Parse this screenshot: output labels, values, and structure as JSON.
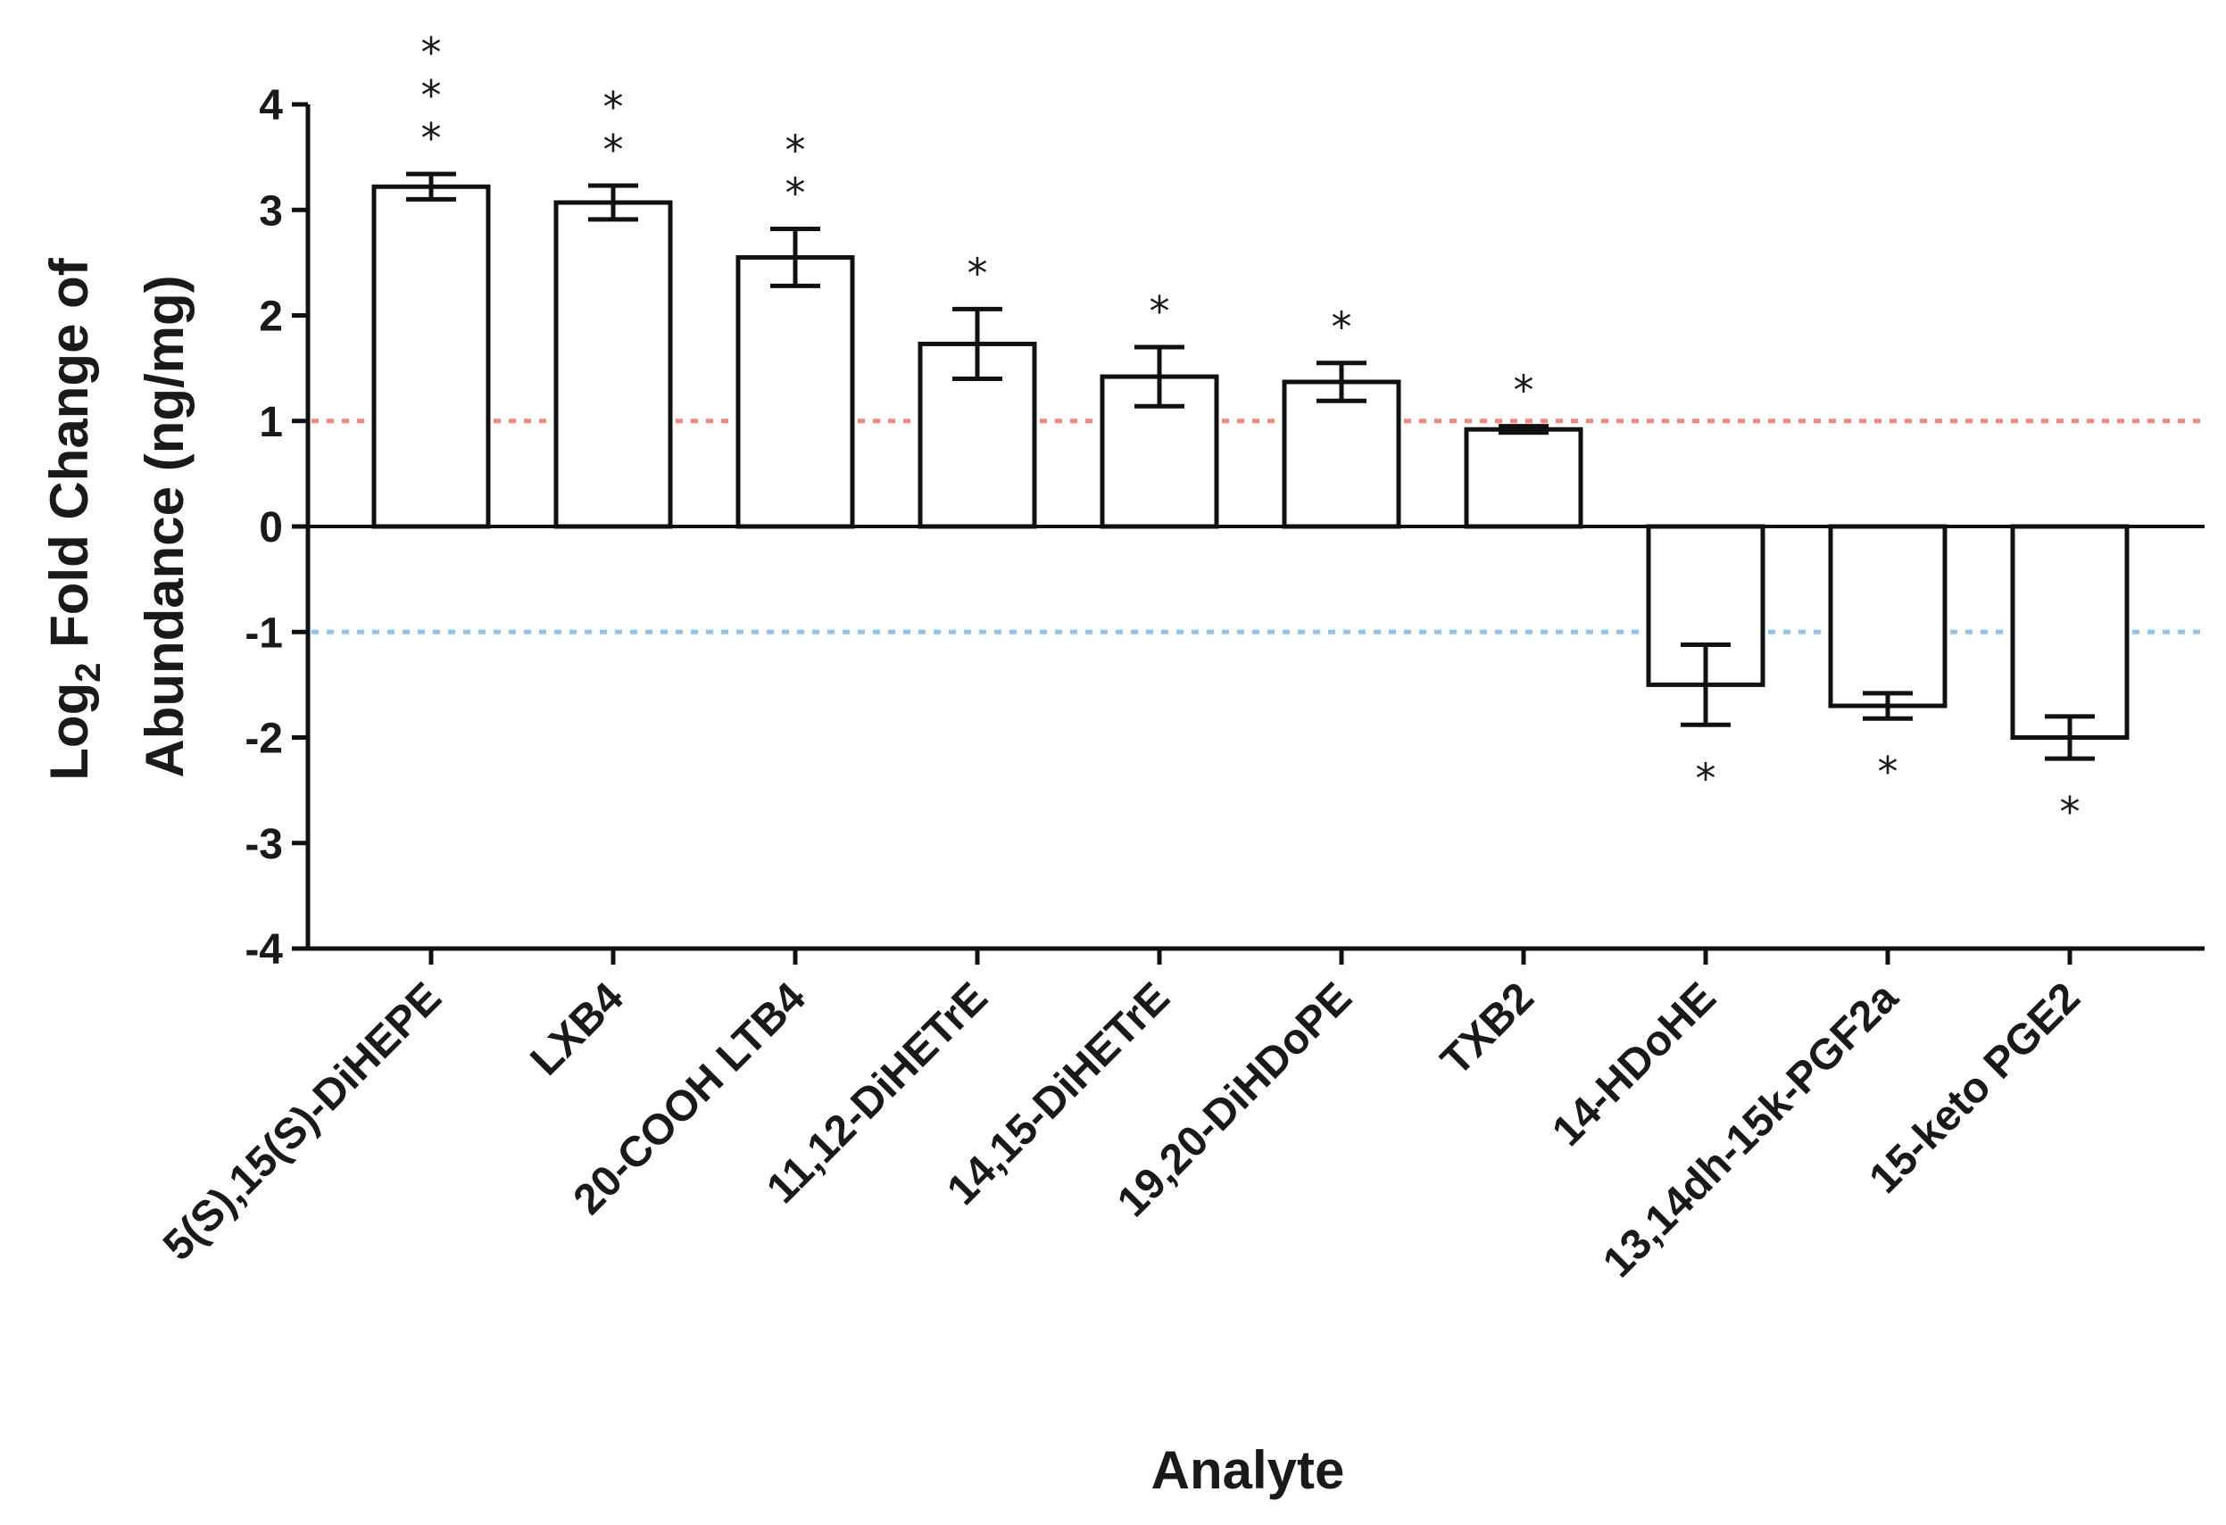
{
  "chart_data": {
    "type": "bar",
    "xlabel": "Analyte",
    "ylabel_line1_prefix": "Log",
    "ylabel_line1_subscript": "2",
    "ylabel_line1_suffix": " Fold Change of",
    "ylabel_line2": "Abundance (ng/mg)",
    "ylim": [
      -4,
      4
    ],
    "yticks": [
      4,
      3,
      2,
      1,
      0,
      -1,
      -2,
      -3,
      -4
    ],
    "reference_lines": [
      {
        "value": 1,
        "color": "#f4877d",
        "style": "dotted"
      },
      {
        "value": -1,
        "color": "#8ec3f4",
        "style": "dotted"
      }
    ],
    "categories": [
      "5(S),15(S)-DiHEPE",
      "LXB4",
      "20-COOH LTB4",
      "11,12-DiHETrE",
      "14,15-DiHETrE",
      "19,20-DiHDoPE",
      "TXB2",
      "14-HDoHE",
      "13,14dh-15k-PGF2a",
      "15-keto PGE2"
    ],
    "values": [
      3.22,
      3.07,
      2.55,
      1.73,
      1.42,
      1.37,
      0.92,
      -1.5,
      -1.7,
      -2.0
    ],
    "errors": [
      0.12,
      0.16,
      0.27,
      0.33,
      0.28,
      0.18,
      0.03,
      0.38,
      0.12,
      0.2
    ],
    "significance": [
      "*",
      "*",
      "*",
      "*",
      "*",
      "*",
      "*",
      "*",
      "*",
      "*"
    ],
    "significance_counts": [
      3,
      2,
      2,
      1,
      1,
      1,
      1,
      1,
      1,
      1
    ],
    "bar_fill": "#ffffff",
    "bar_stroke": "#111111"
  }
}
